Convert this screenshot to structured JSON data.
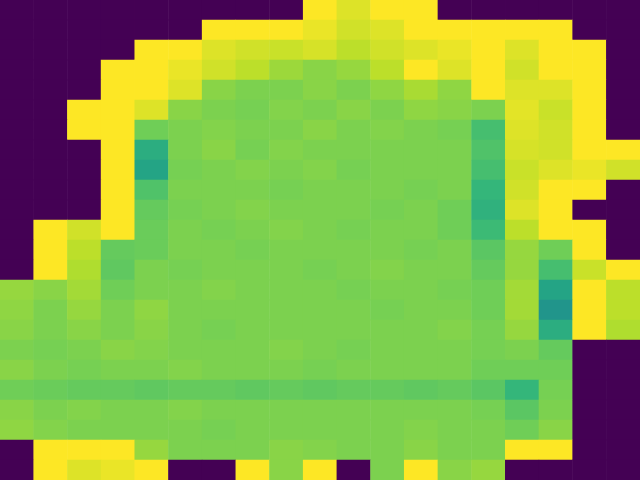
{
  "chart_data": {
    "type": "heatmap",
    "color": "viridis",
    "tick_labels": false,
    "color_range": [
      0,
      1
    ],
    "cells": [
      [
        0,
        0,
        0,
        0,
        0,
        0,
        0,
        0,
        0,
        1,
        0.95,
        1,
        1,
        0,
        0,
        0,
        0,
        0,
        0
      ],
      [
        0,
        0,
        0,
        0,
        0,
        0,
        1,
        1,
        1,
        0.97,
        0.93,
        0.95,
        1,
        1,
        1,
        1,
        1,
        0,
        0
      ],
      [
        0,
        0,
        0,
        0,
        1,
        1,
        0.95,
        0.93,
        0.92,
        0.94,
        0.9,
        0.93,
        0.95,
        0.97,
        1,
        0.95,
        1,
        1,
        0
      ],
      [
        0,
        0,
        0,
        1,
        1,
        0.97,
        0.93,
        0.9,
        0.85,
        0.82,
        0.84,
        0.9,
        1,
        0.95,
        1,
        0.93,
        1,
        1,
        0
      ],
      [
        0,
        0,
        0,
        1,
        1,
        0.95,
        0.82,
        0.8,
        0.8,
        0.82,
        0.8,
        0.83,
        0.87,
        0.83,
        1,
        0.95,
        0.95,
        1,
        0
      ],
      [
        0,
        0,
        1,
        1,
        0.95,
        0.82,
        0.8,
        0.79,
        0.81,
        0.8,
        0.82,
        0.8,
        0.83,
        0.82,
        0.8,
        0.96,
        0.92,
        1,
        0
      ],
      [
        0,
        0,
        1,
        1,
        0.78,
        0.8,
        0.81,
        0.8,
        0.8,
        0.82,
        0.8,
        0.81,
        0.8,
        0.79,
        0.7,
        0.95,
        0.93,
        1,
        0
      ],
      [
        0,
        0,
        0,
        1,
        0.62,
        0.8,
        0.82,
        0.79,
        0.81,
        0.8,
        0.8,
        0.8,
        0.8,
        0.8,
        0.72,
        0.94,
        0.93,
        1,
        1
      ],
      [
        0,
        0,
        0,
        1,
        0.58,
        0.79,
        0.8,
        0.81,
        0.8,
        0.81,
        0.79,
        0.8,
        0.8,
        0.8,
        0.7,
        0.92,
        0.95,
        0.97,
        0.93
      ],
      [
        0,
        0,
        0,
        1,
        0.72,
        0.8,
        0.8,
        0.8,
        0.79,
        0.8,
        0.8,
        0.8,
        0.79,
        0.8,
        0.66,
        0.93,
        1,
        1,
        0
      ],
      [
        0,
        0,
        0,
        1,
        0.76,
        0.79,
        0.8,
        0.81,
        0.8,
        0.8,
        0.8,
        0.79,
        0.8,
        0.78,
        0.64,
        0.95,
        1,
        0,
        0
      ],
      [
        0,
        1,
        0.93,
        1,
        0.77,
        0.8,
        0.79,
        0.8,
        0.81,
        0.8,
        0.79,
        0.8,
        0.8,
        0.78,
        0.68,
        0.9,
        1,
        1,
        0
      ],
      [
        0,
        1,
        0.9,
        0.76,
        0.77,
        0.8,
        0.8,
        0.79,
        0.8,
        0.8,
        0.8,
        0.8,
        0.79,
        0.8,
        0.74,
        0.84,
        0.78,
        1,
        0
      ],
      [
        0,
        1,
        0.88,
        0.75,
        0.8,
        0.79,
        0.8,
        0.8,
        0.8,
        0.79,
        0.8,
        0.81,
        0.8,
        0.8,
        0.76,
        0.84,
        0.7,
        0.92,
        1
      ],
      [
        0.84,
        0.82,
        0.86,
        0.78,
        0.8,
        0.8,
        0.81,
        0.8,
        0.8,
        0.8,
        0.79,
        0.8,
        0.8,
        0.79,
        0.78,
        0.86,
        0.58,
        1,
        0.9
      ],
      [
        0.83,
        0.8,
        0.84,
        0.8,
        0.83,
        0.8,
        0.8,
        0.8,
        0.8,
        0.8,
        0.8,
        0.79,
        0.8,
        0.8,
        0.78,
        0.86,
        0.52,
        1,
        0.9
      ],
      [
        0.82,
        0.8,
        0.82,
        0.8,
        0.82,
        0.8,
        0.79,
        0.8,
        0.8,
        0.8,
        0.8,
        0.8,
        0.8,
        0.81,
        0.79,
        0.84,
        0.62,
        1,
        0.88
      ],
      [
        0.8,
        0.79,
        0.8,
        0.82,
        0.81,
        0.8,
        0.8,
        0.8,
        0.81,
        0.8,
        0.79,
        0.8,
        0.8,
        0.8,
        0.79,
        0.8,
        0.76,
        0,
        0
      ],
      [
        0.82,
        0.8,
        0.79,
        0.8,
        0.8,
        0.81,
        0.8,
        0.8,
        0.8,
        0.79,
        0.8,
        0.8,
        0.8,
        0.8,
        0.78,
        0.78,
        0.78,
        0,
        0
      ],
      [
        0.78,
        0.77,
        0.76,
        0.76,
        0.75,
        0.76,
        0.76,
        0.75,
        0.76,
        0.75,
        0.76,
        0.76,
        0.75,
        0.76,
        0.74,
        0.66,
        0.79,
        0,
        0
      ],
      [
        0.82,
        0.8,
        0.81,
        0.8,
        0.8,
        0.81,
        0.8,
        0.8,
        0.8,
        0.8,
        0.8,
        0.8,
        0.8,
        0.8,
        0.79,
        0.74,
        0.8,
        0,
        0
      ],
      [
        0.83,
        0.81,
        0.8,
        0.8,
        0.8,
        0.8,
        0.79,
        0.8,
        0.8,
        0.8,
        0.8,
        0.8,
        0.81,
        0.8,
        0.8,
        0.78,
        0.82,
        0,
        0
      ],
      [
        0,
        1,
        1,
        1,
        0.84,
        0.8,
        0.8,
        0.8,
        0.82,
        0.81,
        0.8,
        0.8,
        0.82,
        0.8,
        0.8,
        1,
        1,
        0,
        0
      ],
      [
        0,
        1,
        0.95,
        0.97,
        1,
        0,
        0,
        1,
        0.82,
        1,
        0,
        0.8,
        1,
        0.82,
        0.84,
        0,
        0,
        0,
        0
      ]
    ]
  }
}
